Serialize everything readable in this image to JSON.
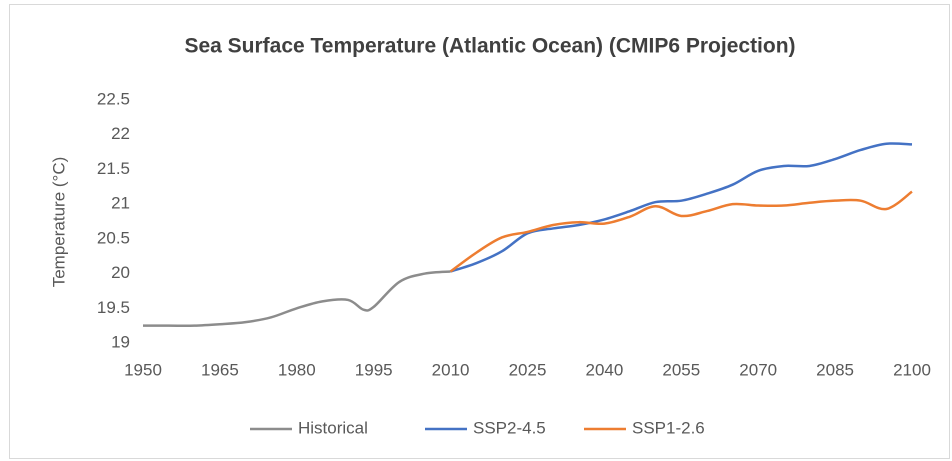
{
  "chart_data": {
    "type": "line",
    "title": "Sea Surface Temperature (Atlantic Ocean) (CMIP6 Projection)",
    "y_label": "Temperature (°C)",
    "xlim": [
      1950,
      2100
    ],
    "xticks": [
      1950,
      1965,
      1980,
      1995,
      2010,
      2025,
      2040,
      2055,
      2070,
      2085,
      2100
    ],
    "ylim": [
      19,
      22.5
    ],
    "yticks": [
      19,
      19.5,
      20,
      20.5,
      21,
      21.5,
      22,
      22.5
    ],
    "grid": false,
    "smooth": true,
    "legend": "bottom",
    "series": [
      {
        "name": "Historical",
        "color": "#8c8c8c",
        "x": [
          1950,
          1955,
          1960,
          1965,
          1970,
          1975,
          1980,
          1985,
          1990,
          1993,
          1995,
          2000,
          2005,
          2010
        ],
        "values": [
          19.25,
          19.25,
          19.25,
          19.27,
          19.3,
          19.37,
          19.5,
          19.6,
          19.62,
          19.48,
          19.52,
          19.88,
          20.0,
          20.03
        ]
      },
      {
        "name": "SSP2-4.5",
        "color": "#4472c4",
        "x": [
          2010,
          2015,
          2020,
          2025,
          2030,
          2035,
          2040,
          2045,
          2050,
          2055,
          2060,
          2065,
          2070,
          2075,
          2080,
          2085,
          2090,
          2095,
          2100
        ],
        "values": [
          20.03,
          20.15,
          20.32,
          20.58,
          20.65,
          20.7,
          20.78,
          20.9,
          21.03,
          21.05,
          21.15,
          21.28,
          21.48,
          21.55,
          21.55,
          21.65,
          21.78,
          21.87,
          21.86
        ]
      },
      {
        "name": "SSP1-2.6",
        "color": "#ed7d31",
        "x": [
          2010,
          2015,
          2020,
          2025,
          2030,
          2035,
          2040,
          2045,
          2050,
          2055,
          2060,
          2065,
          2070,
          2075,
          2080,
          2085,
          2090,
          2095,
          2100
        ],
        "values": [
          20.03,
          20.3,
          20.52,
          20.6,
          20.7,
          20.74,
          20.72,
          20.82,
          20.97,
          20.83,
          20.9,
          21.0,
          20.98,
          20.98,
          21.02,
          21.05,
          21.05,
          20.93,
          21.18
        ]
      }
    ]
  }
}
